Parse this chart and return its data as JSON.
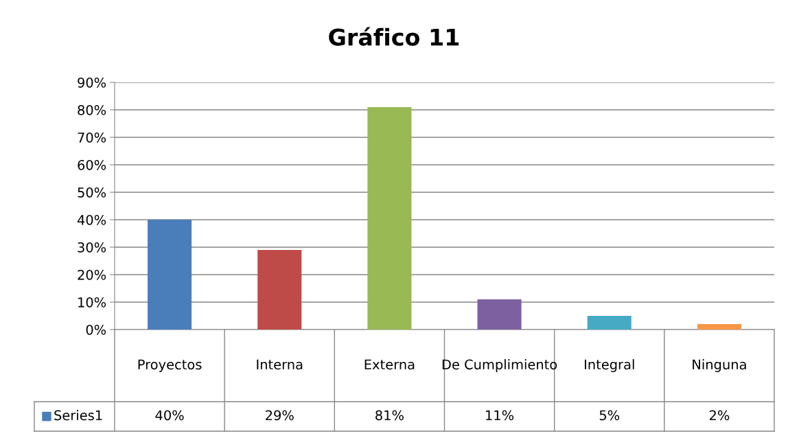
{
  "chart_data": {
    "type": "bar",
    "title": "Gráfico 11",
    "categories": [
      "Proyectos",
      "Interna",
      "Externa",
      "De Cumplimiento",
      "Integral",
      "Ninguna"
    ],
    "series": [
      {
        "name": "Series1",
        "color": "#4a7ebb",
        "colors": [
          "#4a7ebb",
          "#be4b48",
          "#98b954",
          "#7d60a0",
          "#46aac5",
          "#f79646"
        ],
        "values": [
          40,
          29,
          81,
          11,
          5,
          2
        ],
        "value_labels": [
          "40%",
          "29%",
          "81%",
          "11%",
          "5%",
          "2%"
        ]
      }
    ],
    "ylim": [
      0,
      90
    ],
    "yticks": [
      {
        "value": 0,
        "label": "0%"
      },
      {
        "value": 10,
        "label": "10%"
      },
      {
        "value": 20,
        "label": "20%"
      },
      {
        "value": 30,
        "label": "30%"
      },
      {
        "value": 40,
        "label": "40%"
      },
      {
        "value": 50,
        "label": "50%"
      },
      {
        "value": 60,
        "label": "60%"
      },
      {
        "value": 70,
        "label": "70%"
      },
      {
        "value": 80,
        "label": "80%"
      },
      {
        "value": 90,
        "label": "90%"
      }
    ],
    "grid": "y",
    "legend": "bottom",
    "data_labels": true
  }
}
